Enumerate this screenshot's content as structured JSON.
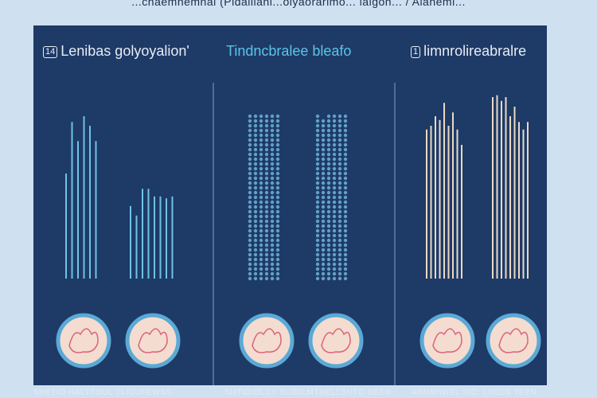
{
  "top_caption": "...chaemnemnal (Pldallianl...olyaorarlmo... lalgon... / Alaneml...",
  "columns": [
    {
      "heading_badge": "14",
      "heading": "Lenibas golyoyalion'",
      "heading_color": "#e6ecf5",
      "bar_style": "lines",
      "bar_color": "#6fc3e6",
      "footer": "SHETIO HALTTOUL TLIOUFEWSS",
      "groups": [
        {
          "levels": [
            0.55,
            0.82,
            0.72,
            0.85,
            0.8,
            0.72
          ]
        },
        {
          "levels": [
            0.38,
            0.33,
            0.47,
            0.47,
            0.43,
            0.43,
            0.42,
            0.43
          ]
        }
      ]
    },
    {
      "heading_badge": "",
      "heading": "Tindncbralee bleafo",
      "heading_color": "#5bc4e8",
      "bar_style": "dots",
      "bar_color": "#6fb3d8",
      "footer": "SHTIDIDL LY SLIDILMTHELLSHTO DEEN",
      "groups": [
        {
          "levels": [
            0.93,
            0.93,
            0.93,
            0.93,
            0.93,
            0.93
          ]
        },
        {
          "levels": [
            0.93,
            0.9,
            0.93,
            0.93,
            0.93,
            0.93
          ]
        }
      ]
    },
    {
      "heading_badge": "1",
      "heading": "limnrolireabralre",
      "heading_color": "#e6ecf5",
      "bar_style": "lines",
      "bar_color": "#ead9c4",
      "footer": "ANHNIWIEL SIO: LIIEDS TEEN",
      "groups": [
        {
          "levels": [
            0.78,
            0.8,
            0.85,
            0.83,
            0.92,
            0.8,
            0.87,
            0.78,
            0.7
          ]
        },
        {
          "levels": [
            0.95,
            0.96,
            0.93,
            0.95,
            0.85,
            0.9,
            0.82,
            0.78,
            0.82
          ]
        }
      ]
    }
  ],
  "colors": {
    "background": "#cfe1f1",
    "panel": "#1e3a66",
    "circle_ring": "#5aa9d6",
    "circle_fill": "#f4dcd0",
    "circle_detail": "#d9657a"
  }
}
